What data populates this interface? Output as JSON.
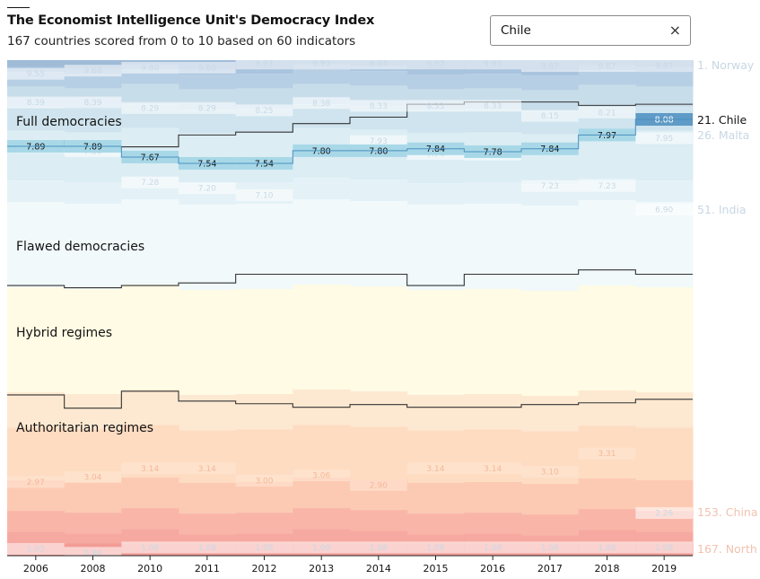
{
  "header": {
    "title": "The Economist Intelligence Unit's Democracy Index",
    "subtitle": "167 countries scored from 0 to 10 based on 60 indicators"
  },
  "search": {
    "value": "Chile",
    "clear_icon": "×"
  },
  "chart_data": {
    "type": "area",
    "title": "The Economist Intelligence Unit's Democracy Index",
    "x": [
      "2006",
      "2008",
      "2010",
      "2011",
      "2012",
      "2013",
      "2014",
      "2015",
      "2016",
      "2017",
      "2018",
      "2019"
    ],
    "ylim": [
      0,
      10
    ],
    "bands": [
      {
        "name": "Full democracies",
        "label_score": 8.75,
        "color": "#c6dcea"
      },
      {
        "name": "Flawed democracies",
        "label_score": 7.1,
        "color": "#eef7fa"
      },
      {
        "name": "Hybrid regimes",
        "label_score": 5.0,
        "color": "#fffae0"
      },
      {
        "name": "Authoritarian regimes",
        "label_score": 3.5,
        "color": "#fcd9bf"
      }
    ],
    "highlight_series": {
      "name": "21. Chile",
      "values": [
        7.89,
        7.89,
        7.67,
        7.54,
        7.54,
        7.8,
        7.8,
        7.84,
        7.78,
        7.84,
        7.97,
        8.08
      ]
    },
    "faded_series": [
      {
        "name": "1. Norway",
        "values": [
          9.55,
          9.68,
          9.8,
          9.8,
          9.93,
          9.93,
          9.93,
          9.93,
          9.93,
          9.87,
          9.87,
          9.87
        ]
      },
      {
        "name": "26. Malta",
        "values": [
          null,
          null,
          null,
          null,
          null,
          null,
          7.93,
          null,
          null,
          null,
          null,
          7.95
        ]
      },
      {
        "name": "51. India",
        "values": [
          null,
          null,
          null,
          null,
          null,
          null,
          null,
          null,
          null,
          7.23,
          7.23,
          6.9
        ]
      },
      {
        "name": "153. China",
        "values": [
          null,
          null,
          null,
          null,
          null,
          null,
          null,
          null,
          null,
          null,
          null,
          2.26
        ]
      },
      {
        "name": "167. North Korea",
        "values": [
          1.03,
          0.86,
          1.08,
          1.08,
          1.08,
          1.08,
          1.08,
          1.08,
          1.08,
          1.08,
          1.08,
          1.08
        ]
      }
    ],
    "extra_values": {
      "upper_full": [
        8.39,
        8.39,
        8.29,
        8.29,
        8.25,
        8.38,
        8.33,
        8.33,
        8.33,
        8.15,
        8.21,
        null
      ],
      "lower_full": [
        7.88,
        7.8,
        7.28,
        7.2,
        7.1,
        null,
        null,
        7.74,
        7.73,
        null,
        null,
        null
      ],
      "authoritarian": [
        2.97,
        3.04,
        3.14,
        3.14,
        3.0,
        3.06,
        2.9,
        3.14,
        3.14,
        3.1,
        3.31,
        null
      ]
    }
  }
}
